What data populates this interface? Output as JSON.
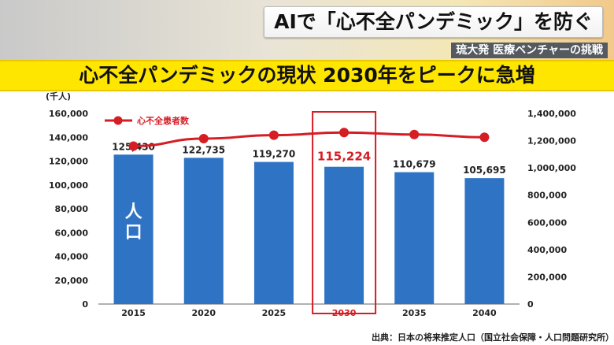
{
  "header": {
    "headline": "AIで「心不全パンデミック」を防ぐ",
    "subhead": "琉大発 医療ベンチャーの挑戦",
    "banner": "心不全パンデミックの現状 2030年をピークに急増"
  },
  "colors": {
    "bar": "#2f73c4",
    "line": "#d51d24",
    "banner": "#ffe600",
    "highlight": "#d51d24"
  },
  "chart_data": {
    "type": "bar",
    "categories": [
      "2015",
      "2020",
      "2025",
      "2030",
      "2035",
      "2040"
    ],
    "values": [
      125430,
      122735,
      119270,
      115224,
      110679,
      105695
    ],
    "value_labels": [
      "125,430",
      "122,735",
      "119,270",
      "115,224",
      "110,679",
      "105,695"
    ],
    "highlight_index": 3,
    "bar_label": "人口",
    "left_axis": {
      "unit": "(千人)",
      "ylim": [
        0,
        160000
      ],
      "ticks": [
        "0",
        "20,000",
        "40,000",
        "60,000",
        "80,000",
        "100,000",
        "120,000",
        "140,000",
        "160,000"
      ]
    },
    "right_axis": {
      "ylim": [
        0,
        1400000
      ],
      "ticks": [
        "0",
        "200,000",
        "400,000",
        "600,000",
        "800,000",
        "1,000,000",
        "1,200,000",
        "1,400,000"
      ]
    },
    "series": [
      {
        "name": "心不全患者数",
        "type": "line",
        "axis": "right",
        "values": [
          1160000,
          1215000,
          1240000,
          1260000,
          1245000,
          1225000
        ]
      }
    ],
    "source": "出典：日本の将来推定人口（国立社会保障・人口問題研究所）"
  }
}
